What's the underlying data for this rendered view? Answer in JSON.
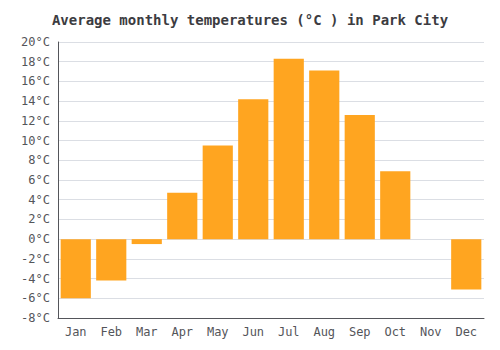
{
  "chart_data": {
    "type": "bar",
    "title": "Average monthly temperatures (°C ) in Park City",
    "categories": [
      "Jan",
      "Feb",
      "Mar",
      "Apr",
      "May",
      "Jun",
      "Jul",
      "Aug",
      "Sep",
      "Oct",
      "Nov",
      "Dec"
    ],
    "values": [
      -6.0,
      -4.2,
      -0.5,
      4.7,
      9.5,
      14.2,
      18.3,
      17.1,
      12.6,
      6.9,
      0.0,
      -5.1
    ],
    "color": "#FFA520",
    "ylim": [
      -8,
      20
    ],
    "yticks": [
      {
        "value": -8,
        "label": "-8°C"
      },
      {
        "value": -6,
        "label": "-6°C"
      },
      {
        "value": -4,
        "label": "-4°C"
      },
      {
        "value": -2,
        "label": "-2°C"
      },
      {
        "value": 0,
        "label": "0°C"
      },
      {
        "value": 2,
        "label": "2°C"
      },
      {
        "value": 4,
        "label": "4°C"
      },
      {
        "value": 6,
        "label": "6°C"
      },
      {
        "value": 8,
        "label": "8°C"
      },
      {
        "value": 10,
        "label": "10°C"
      },
      {
        "value": 12,
        "label": "12°C"
      },
      {
        "value": 14,
        "label": "14°C"
      },
      {
        "value": 16,
        "label": "16°C"
      },
      {
        "value": 18,
        "label": "18°C"
      },
      {
        "value": 20,
        "label": "20°C"
      }
    ],
    "grid": true
  }
}
